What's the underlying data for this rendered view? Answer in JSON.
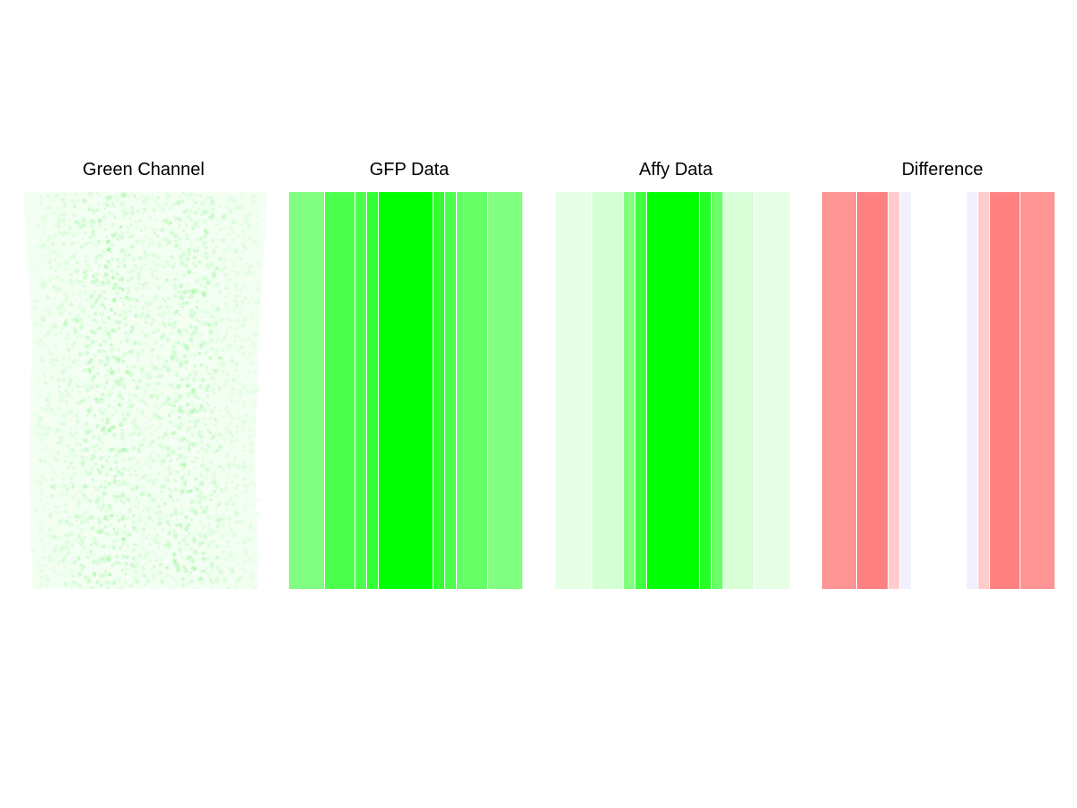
{
  "figure": {
    "panels": [
      {
        "key": "green",
        "title": "Green Channel"
      },
      {
        "key": "gfp",
        "title": "GFP Data"
      },
      {
        "key": "affy",
        "title": "Affy Data"
      },
      {
        "key": "diff",
        "title": "Difference"
      }
    ]
  },
  "chart_data": [
    {
      "type": "heatmap",
      "title": "Green Channel",
      "description_kind": "image",
      "base_color": "#f2fff2",
      "speckle_color": "#00e000",
      "columns": 24,
      "rows": 40,
      "column_intensity": [
        0.05,
        0.06,
        0.07,
        0.08,
        0.1,
        0.12,
        0.14,
        0.15,
        0.15,
        0.14,
        0.12,
        0.1,
        0.09,
        0.1,
        0.12,
        0.14,
        0.15,
        0.14,
        0.12,
        0.1,
        0.08,
        0.07,
        0.06,
        0.05
      ]
    },
    {
      "type": "heatmap",
      "title": "GFP Data",
      "colormap": "white-to-green",
      "columns": [
        {
          "width": 39,
          "value": 0.5
        },
        {
          "width": 33,
          "value": 0.7
        },
        {
          "width": 12,
          "value": 0.7
        },
        {
          "width": 12,
          "value": 0.8
        },
        {
          "width": 60,
          "value": 1.0
        },
        {
          "width": 12,
          "value": 0.8
        },
        {
          "width": 12,
          "value": 0.7
        },
        {
          "width": 34,
          "value": 0.6
        },
        {
          "width": 38,
          "value": 0.5
        }
      ]
    },
    {
      "type": "heatmap",
      "title": "Affy Data",
      "colormap": "white-to-green",
      "columns": [
        {
          "width": 40,
          "value": 0.1
        },
        {
          "width": 34,
          "value": 0.17
        },
        {
          "width": 12,
          "value": 0.5
        },
        {
          "width": 12,
          "value": 0.75
        },
        {
          "width": 58,
          "value": 1.0
        },
        {
          "width": 12,
          "value": 0.85
        },
        {
          "width": 12,
          "value": 0.6
        },
        {
          "width": 34,
          "value": 0.15
        },
        {
          "width": 39,
          "value": 0.1
        }
      ]
    },
    {
      "type": "heatmap",
      "title": "Difference",
      "colormap": "blue-white-red",
      "columns": [
        {
          "width": 38,
          "value": 0.42
        },
        {
          "width": 34,
          "value": 0.5
        },
        {
          "width": 12,
          "value": 0.2
        },
        {
          "width": 12,
          "value": -0.06
        },
        {
          "width": 60,
          "value": 0.0
        },
        {
          "width": 12,
          "value": -0.06
        },
        {
          "width": 12,
          "value": 0.2
        },
        {
          "width": 33,
          "value": 0.5
        },
        {
          "width": 38,
          "value": 0.42
        }
      ]
    }
  ]
}
